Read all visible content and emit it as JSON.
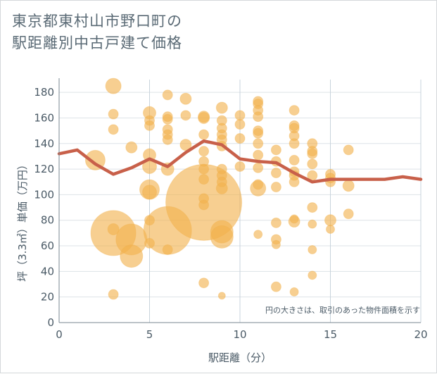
{
  "header": {
    "title_line1": "東京都東村山市野口町の",
    "title_line2": "駅距離別中古戸建て価格"
  },
  "chart_data": {
    "type": "scatter",
    "title": "東京都東村山市野口町の駅距離別中古戸建て価格",
    "xlabel": "駅距離（分）",
    "ylabel": "坪（3.3㎡）単価（万円）",
    "xlim": [
      0,
      20
    ],
    "ylim": [
      0,
      190
    ],
    "x_ticks": [
      "0",
      "5",
      "10",
      "15",
      "20"
    ],
    "y_ticks": [
      "0",
      "20",
      "40",
      "60",
      "80",
      "100",
      "120",
      "140",
      "160",
      "180"
    ],
    "grid": true,
    "annotation": "円の大きさは、取引のあった物件面積を示す",
    "colors": {
      "bubble": "#f2b24e",
      "line": "#c8604a"
    },
    "series": [
      {
        "kind": "bubble",
        "points": [
          {
            "x": 2,
            "y": 127,
            "r": 14
          },
          {
            "x": 3,
            "y": 185,
            "r": 11
          },
          {
            "x": 3,
            "y": 163,
            "r": 7
          },
          {
            "x": 3,
            "y": 151,
            "r": 7
          },
          {
            "x": 3,
            "y": 73,
            "r": 8
          },
          {
            "x": 3,
            "y": 70,
            "r": 32
          },
          {
            "x": 3,
            "y": 22,
            "r": 7
          },
          {
            "x": 4,
            "y": 137,
            "r": 8
          },
          {
            "x": 4,
            "y": 65,
            "r": 22
          },
          {
            "x": 4,
            "y": 52,
            "r": 16
          },
          {
            "x": 5,
            "y": 164,
            "r": 9
          },
          {
            "x": 5,
            "y": 158,
            "r": 7
          },
          {
            "x": 5,
            "y": 154,
            "r": 7
          },
          {
            "x": 5,
            "y": 131,
            "r": 9
          },
          {
            "x": 5,
            "y": 122,
            "r": 10
          },
          {
            "x": 5,
            "y": 104,
            "r": 14
          },
          {
            "x": 5,
            "y": 102,
            "r": 10
          },
          {
            "x": 5,
            "y": 80,
            "r": 7
          },
          {
            "x": 5,
            "y": 62,
            "r": 7
          },
          {
            "x": 6,
            "y": 178,
            "r": 7
          },
          {
            "x": 6,
            "y": 161,
            "r": 7
          },
          {
            "x": 6,
            "y": 159,
            "r": 7
          },
          {
            "x": 6,
            "y": 151,
            "r": 7
          },
          {
            "x": 6,
            "y": 147,
            "r": 7
          },
          {
            "x": 6,
            "y": 143,
            "r": 7
          },
          {
            "x": 6,
            "y": 120,
            "r": 9
          },
          {
            "x": 6,
            "y": 72,
            "r": 34
          },
          {
            "x": 6,
            "y": 57,
            "r": 7
          },
          {
            "x": 7,
            "y": 175,
            "r": 8
          },
          {
            "x": 7,
            "y": 162,
            "r": 7
          },
          {
            "x": 7,
            "y": 139,
            "r": 8
          },
          {
            "x": 8,
            "y": 161,
            "r": 8
          },
          {
            "x": 8,
            "y": 160,
            "r": 8
          },
          {
            "x": 8,
            "y": 147,
            "r": 7
          },
          {
            "x": 8,
            "y": 134,
            "r": 7
          },
          {
            "x": 8,
            "y": 126,
            "r": 7
          },
          {
            "x": 8,
            "y": 120,
            "r": 7
          },
          {
            "x": 8,
            "y": 112,
            "r": 7
          },
          {
            "x": 8,
            "y": 97,
            "r": 7
          },
          {
            "x": 8,
            "y": 94,
            "r": 54
          },
          {
            "x": 8,
            "y": 92,
            "r": 7
          },
          {
            "x": 8,
            "y": 31,
            "r": 7
          },
          {
            "x": 9,
            "y": 168,
            "r": 8
          },
          {
            "x": 9,
            "y": 158,
            "r": 7
          },
          {
            "x": 9,
            "y": 152,
            "r": 7
          },
          {
            "x": 9,
            "y": 147,
            "r": 7
          },
          {
            "x": 9,
            "y": 143,
            "r": 7
          },
          {
            "x": 9,
            "y": 138,
            "r": 7
          },
          {
            "x": 9,
            "y": 120,
            "r": 7
          },
          {
            "x": 9,
            "y": 115,
            "r": 7
          },
          {
            "x": 9,
            "y": 110,
            "r": 7
          },
          {
            "x": 9,
            "y": 105,
            "r": 8
          },
          {
            "x": 9,
            "y": 71,
            "r": 16
          },
          {
            "x": 9,
            "y": 67,
            "r": 16
          },
          {
            "x": 9,
            "y": 21,
            "r": 5
          },
          {
            "x": 10,
            "y": 162,
            "r": 7
          },
          {
            "x": 10,
            "y": 155,
            "r": 7
          },
          {
            "x": 10,
            "y": 144,
            "r": 7
          },
          {
            "x": 10,
            "y": 122,
            "r": 7
          },
          {
            "x": 11,
            "y": 173,
            "r": 7
          },
          {
            "x": 11,
            "y": 171,
            "r": 7
          },
          {
            "x": 11,
            "y": 166,
            "r": 7
          },
          {
            "x": 11,
            "y": 161,
            "r": 7
          },
          {
            "x": 11,
            "y": 150,
            "r": 7
          },
          {
            "x": 11,
            "y": 148,
            "r": 7
          },
          {
            "x": 11,
            "y": 140,
            "r": 7
          },
          {
            "x": 11,
            "y": 131,
            "r": 7
          },
          {
            "x": 11,
            "y": 121,
            "r": 7
          },
          {
            "x": 11,
            "y": 108,
            "r": 7
          },
          {
            "x": 11,
            "y": 105,
            "r": 11
          },
          {
            "x": 11,
            "y": 69,
            "r": 6
          },
          {
            "x": 12,
            "y": 135,
            "r": 7
          },
          {
            "x": 12,
            "y": 126,
            "r": 7
          },
          {
            "x": 12,
            "y": 117,
            "r": 7
          },
          {
            "x": 12,
            "y": 106,
            "r": 7
          },
          {
            "x": 12,
            "y": 78,
            "r": 7
          },
          {
            "x": 12,
            "y": 65,
            "r": 7
          },
          {
            "x": 12,
            "y": 61,
            "r": 6
          },
          {
            "x": 12,
            "y": 28,
            "r": 7
          },
          {
            "x": 13,
            "y": 166,
            "r": 7
          },
          {
            "x": 13,
            "y": 154,
            "r": 7
          },
          {
            "x": 13,
            "y": 152,
            "r": 7
          },
          {
            "x": 13,
            "y": 146,
            "r": 7
          },
          {
            "x": 13,
            "y": 140,
            "r": 7
          },
          {
            "x": 13,
            "y": 127,
            "r": 7
          },
          {
            "x": 13,
            "y": 118,
            "r": 7
          },
          {
            "x": 13,
            "y": 115,
            "r": 7
          },
          {
            "x": 13,
            "y": 110,
            "r": 7
          },
          {
            "x": 13,
            "y": 81,
            "r": 6
          },
          {
            "x": 13,
            "y": 79,
            "r": 8
          },
          {
            "x": 13,
            "y": 24,
            "r": 6
          },
          {
            "x": 14,
            "y": 140,
            "r": 7
          },
          {
            "x": 14,
            "y": 134,
            "r": 7
          },
          {
            "x": 14,
            "y": 132,
            "r": 7
          },
          {
            "x": 14,
            "y": 124,
            "r": 7
          },
          {
            "x": 14,
            "y": 115,
            "r": 7
          },
          {
            "x": 14,
            "y": 90,
            "r": 7
          },
          {
            "x": 14,
            "y": 77,
            "r": 6
          },
          {
            "x": 14,
            "y": 57,
            "r": 6
          },
          {
            "x": 14,
            "y": 37,
            "r": 6
          },
          {
            "x": 15,
            "y": 116,
            "r": 7
          },
          {
            "x": 15,
            "y": 113,
            "r": 7
          },
          {
            "x": 15,
            "y": 110,
            "r": 7
          },
          {
            "x": 15,
            "y": 80,
            "r": 8
          },
          {
            "x": 15,
            "y": 73,
            "r": 6
          },
          {
            "x": 16,
            "y": 135,
            "r": 7
          },
          {
            "x": 16,
            "y": 107,
            "r": 8
          },
          {
            "x": 16,
            "y": 85,
            "r": 7
          }
        ]
      },
      {
        "kind": "line",
        "points": [
          {
            "x": 0,
            "y": 132
          },
          {
            "x": 1,
            "y": 135
          },
          {
            "x": 2,
            "y": 124
          },
          {
            "x": 3,
            "y": 116
          },
          {
            "x": 4,
            "y": 121
          },
          {
            "x": 5,
            "y": 128
          },
          {
            "x": 6,
            "y": 122
          },
          {
            "x": 7,
            "y": 133
          },
          {
            "x": 8,
            "y": 142
          },
          {
            "x": 9,
            "y": 139
          },
          {
            "x": 10,
            "y": 128
          },
          {
            "x": 11,
            "y": 126
          },
          {
            "x": 12,
            "y": 125
          },
          {
            "x": 13,
            "y": 117
          },
          {
            "x": 14,
            "y": 110
          },
          {
            "x": 15,
            "y": 112
          },
          {
            "x": 16,
            "y": 112
          },
          {
            "x": 17,
            "y": 112
          },
          {
            "x": 18,
            "y": 112
          },
          {
            "x": 19,
            "y": 114
          },
          {
            "x": 20,
            "y": 112
          }
        ]
      }
    ]
  }
}
